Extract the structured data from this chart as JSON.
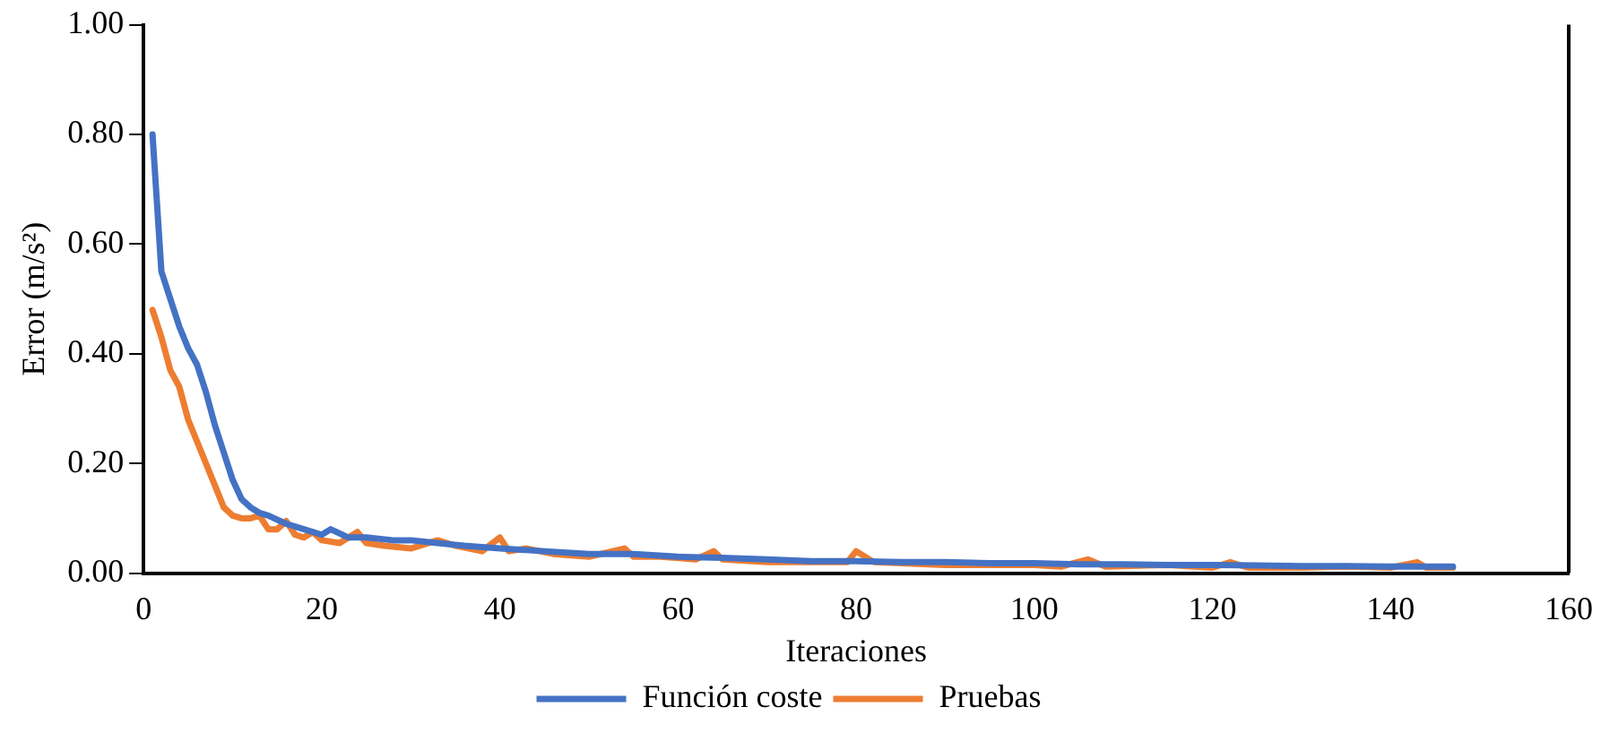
{
  "chart_data": {
    "type": "line",
    "xlabel": "Iteraciones",
    "ylabel": "Error (m/s²)",
    "xlim": [
      0,
      160
    ],
    "xticks": [
      0,
      20,
      40,
      60,
      80,
      100,
      120,
      140,
      160
    ],
    "ylim": [
      0,
      1
    ],
    "yticks": [
      {
        "value": 0,
        "label": "0.00"
      },
      {
        "value": 0.2,
        "label": "0.20"
      },
      {
        "value": 0.4,
        "label": "0.40"
      },
      {
        "value": 0.6,
        "label": "0.60"
      },
      {
        "value": 0.8,
        "label": "0.80"
      },
      {
        "value": 1,
        "label": "1.00"
      }
    ],
    "grid": false,
    "legend": "bottom",
    "marker": "none",
    "line_style": "solid",
    "series": [
      {
        "name": "Función coste",
        "color": "#4472c4",
        "x": [
          1,
          2,
          3,
          4,
          5,
          6,
          7,
          8,
          9,
          10,
          11,
          12,
          13,
          14,
          16,
          18,
          20,
          21,
          23,
          25,
          28,
          30,
          33,
          36,
          40,
          45,
          50,
          55,
          60,
          65,
          70,
          75,
          80,
          85,
          90,
          95,
          100,
          105,
          110,
          115,
          120,
          125,
          130,
          135,
          140,
          145,
          147
        ],
        "values": [
          0.8,
          0.55,
          0.5,
          0.45,
          0.41,
          0.38,
          0.33,
          0.27,
          0.22,
          0.17,
          0.135,
          0.12,
          0.11,
          0.105,
          0.09,
          0.08,
          0.07,
          0.08,
          0.065,
          0.065,
          0.06,
          0.06,
          0.055,
          0.05,
          0.045,
          0.04,
          0.035,
          0.035,
          0.03,
          0.028,
          0.025,
          0.022,
          0.022,
          0.02,
          0.02,
          0.018,
          0.018,
          0.016,
          0.016,
          0.015,
          0.015,
          0.014,
          0.013,
          0.013,
          0.012,
          0.012,
          0.012
        ]
      },
      {
        "name": "Pruebas",
        "color": "#ed7d31",
        "x": [
          1,
          2,
          3,
          4,
          5,
          6,
          7,
          8,
          9,
          10,
          11,
          12,
          13,
          14,
          15,
          16,
          17,
          18,
          19,
          20,
          22,
          24,
          25,
          27,
          30,
          33,
          35,
          38,
          40,
          41,
          43,
          46,
          50,
          54,
          55,
          58,
          62,
          64,
          65,
          70,
          75,
          79,
          80,
          82,
          90,
          95,
          100,
          103,
          106,
          108,
          115,
          120,
          122,
          124,
          130,
          135,
          140,
          143,
          144,
          147
        ],
        "values": [
          0.48,
          0.43,
          0.37,
          0.34,
          0.28,
          0.24,
          0.2,
          0.16,
          0.12,
          0.105,
          0.1,
          0.1,
          0.105,
          0.08,
          0.08,
          0.095,
          0.07,
          0.065,
          0.075,
          0.06,
          0.055,
          0.075,
          0.055,
          0.05,
          0.045,
          0.06,
          0.05,
          0.04,
          0.065,
          0.04,
          0.045,
          0.035,
          0.03,
          0.045,
          0.03,
          0.03,
          0.025,
          0.04,
          0.025,
          0.02,
          0.02,
          0.02,
          0.04,
          0.02,
          0.015,
          0.015,
          0.015,
          0.012,
          0.025,
          0.012,
          0.015,
          0.01,
          0.02,
          0.01,
          0.01,
          0.012,
          0.01,
          0.02,
          0.01,
          0.01
        ]
      }
    ]
  }
}
